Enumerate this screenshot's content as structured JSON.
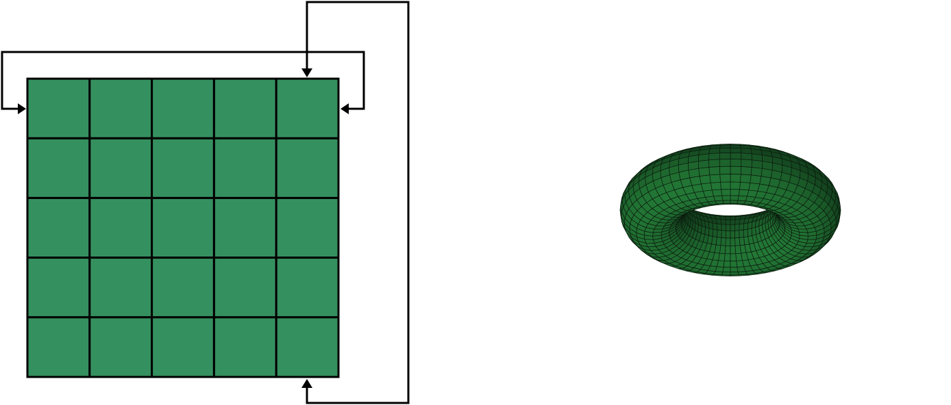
{
  "figure": {
    "grid": {
      "rows": 5,
      "cols": 5,
      "fill_color": "#35905f",
      "line_color": "#000000"
    },
    "wrap_arrows": [
      {
        "name": "horizontal-wrap",
        "connects": [
          "left-edge",
          "right-edge"
        ]
      },
      {
        "name": "vertical-wrap",
        "connects": [
          "top-edge",
          "bottom-edge"
        ]
      }
    ],
    "torus": {
      "fill_color": "#1f6b30",
      "mesh_color": "#0b1a0d",
      "major_segments": 64,
      "minor_segments": 24
    }
  }
}
